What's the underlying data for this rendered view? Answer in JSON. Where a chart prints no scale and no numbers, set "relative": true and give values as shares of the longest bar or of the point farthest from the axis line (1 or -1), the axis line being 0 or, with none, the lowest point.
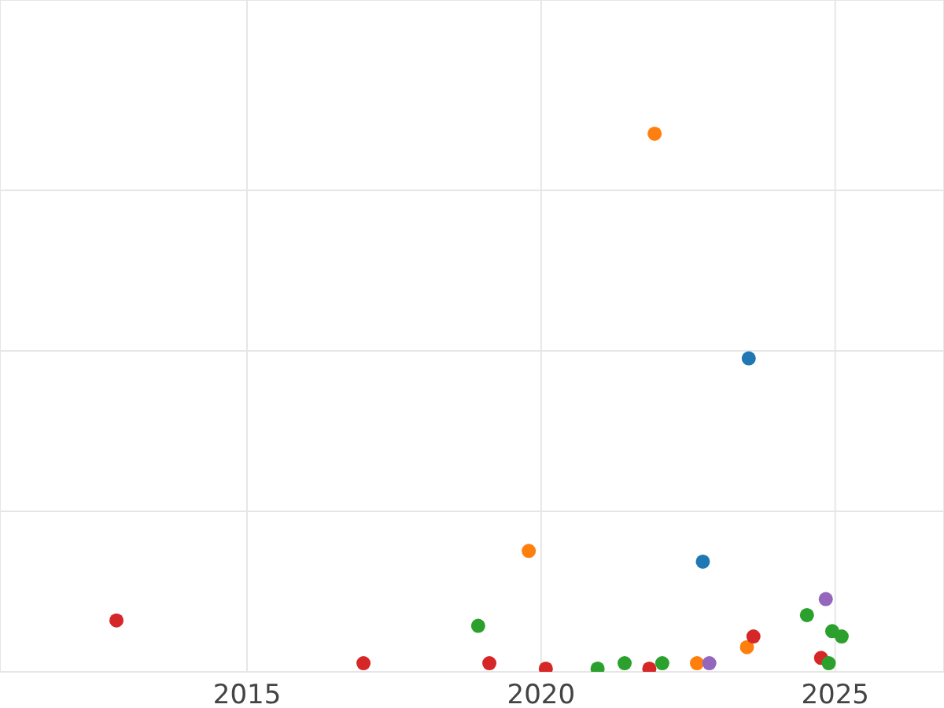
{
  "chart_data": {
    "type": "scatter",
    "relative": true,
    "grid": true,
    "marker": "circle",
    "tick_labels": "x",
    "xlim": [
      2010.8,
      2026.85
    ],
    "xticks": [
      2015,
      2020,
      2025
    ],
    "x": [
      2012.78,
      2016.98,
      2018.93,
      2019.12,
      2019.79,
      2020.08,
      2020.96,
      2021.42,
      2021.93,
      2021.84,
      2022.06,
      2022.65,
      2022.86,
      2022.75,
      2023.53,
      2023.5,
      2023.61,
      2024.52,
      2024.84,
      2024.76,
      2024.95,
      2025.11,
      2024.89
    ],
    "values": [
      0.09,
      0.01,
      0.08,
      0.01,
      0.22,
      0,
      0,
      0.01,
      1,
      0,
      0.01,
      0.01,
      0.01,
      0.2,
      0.58,
      0.04,
      0.06,
      0.1,
      0.13,
      0.02,
      0.07,
      0.06,
      0.01
    ],
    "colors": [
      "#d62728",
      "#d62728",
      "#2ca02c",
      "#d62728",
      "#ff7f0e",
      "#d62728",
      "#2ca02c",
      "#2ca02c",
      "#ff7f0e",
      "#d62728",
      "#2ca02c",
      "#ff7f0e",
      "#9467bd",
      "#1f77b4",
      "#1f77b4",
      "#ff7f0e",
      "#d62728",
      "#2ca02c",
      "#9467bd",
      "#d62728",
      "#2ca02c",
      "#2ca02c",
      "#2ca02c"
    ]
  }
}
